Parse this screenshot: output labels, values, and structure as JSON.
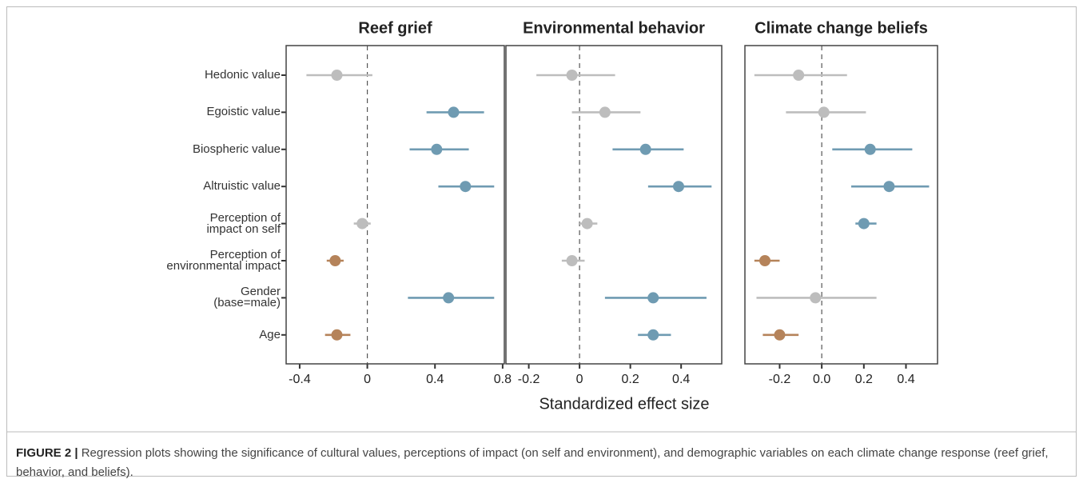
{
  "chart_data": [
    {
      "type": "dot",
      "title": "Reef grief",
      "categories": [
        "Hedonic value",
        "Egoistic value",
        "Biospheric value",
        "Altruistic value",
        "Perception of\nimpact on self",
        "Perception of\nenvironmental impact",
        "Gender\n(base=male)",
        "Age"
      ],
      "values": [
        -0.18,
        0.51,
        0.41,
        0.58,
        -0.03,
        -0.19,
        0.48,
        -0.18
      ],
      "lower": [
        -0.36,
        0.35,
        0.25,
        0.42,
        -0.08,
        -0.24,
        0.24,
        -0.25
      ],
      "upper": [
        0.03,
        0.69,
        0.6,
        0.75,
        0.02,
        -0.14,
        0.75,
        -0.1
      ],
      "colors": [
        "#bdbdbd",
        "#6f9bb2",
        "#6f9bb2",
        "#6f9bb2",
        "#bdbdbd",
        "#b5835a",
        "#6f9bb2",
        "#b5835a"
      ],
      "xlim": [
        -0.48,
        0.81
      ],
      "xticks": [
        -0.4,
        0,
        0.4,
        0.8
      ]
    },
    {
      "type": "dot",
      "title": "Environmental behavior",
      "values": [
        -0.03,
        0.1,
        0.26,
        0.39,
        0.03,
        -0.03,
        0.29,
        0.29
      ],
      "lower": [
        -0.17,
        -0.03,
        0.13,
        0.27,
        0.0,
        -0.07,
        0.1,
        0.23
      ],
      "upper": [
        0.14,
        0.24,
        0.41,
        0.52,
        0.07,
        0.02,
        0.5,
        0.36
      ],
      "colors": [
        "#bdbdbd",
        "#bdbdbd",
        "#6f9bb2",
        "#6f9bb2",
        "#bdbdbd",
        "#bdbdbd",
        "#6f9bb2",
        "#6f9bb2"
      ],
      "xlim": [
        -0.29,
        0.56
      ],
      "xticks": [
        -0.2,
        0,
        0.2,
        0.4
      ]
    },
    {
      "type": "dot",
      "title": "Climate change beliefs",
      "values": [
        -0.11,
        0.01,
        0.23,
        0.32,
        0.2,
        -0.27,
        -0.03,
        -0.2
      ],
      "lower": [
        -0.32,
        -0.17,
        0.05,
        0.14,
        0.16,
        -0.32,
        -0.31,
        -0.28
      ],
      "upper": [
        0.12,
        0.21,
        0.43,
        0.51,
        0.26,
        -0.2,
        0.26,
        -0.11
      ],
      "colors": [
        "#bdbdbd",
        "#bdbdbd",
        "#6f9bb2",
        "#6f9bb2",
        "#6f9bb2",
        "#b5835a",
        "#bdbdbd",
        "#b5835a"
      ],
      "xlim": [
        -0.365,
        0.55
      ],
      "xticks": [
        {
          "value": -0.2,
          "label": "-0.2"
        },
        {
          "value": 0,
          "label": "0.0"
        },
        {
          "value": 0.2,
          "label": "0.2"
        },
        {
          "value": 0.4,
          "label": "0.4"
        }
      ]
    }
  ],
  "x_label": "Standardized effect size",
  "caption": {
    "label": "FIGURE 2 |",
    "text": "Regression plots showing the significance of cultural values, perceptions of impact (on self and environment), and demographic variables on each climate change response (reef grief, behavior, and beliefs)."
  }
}
